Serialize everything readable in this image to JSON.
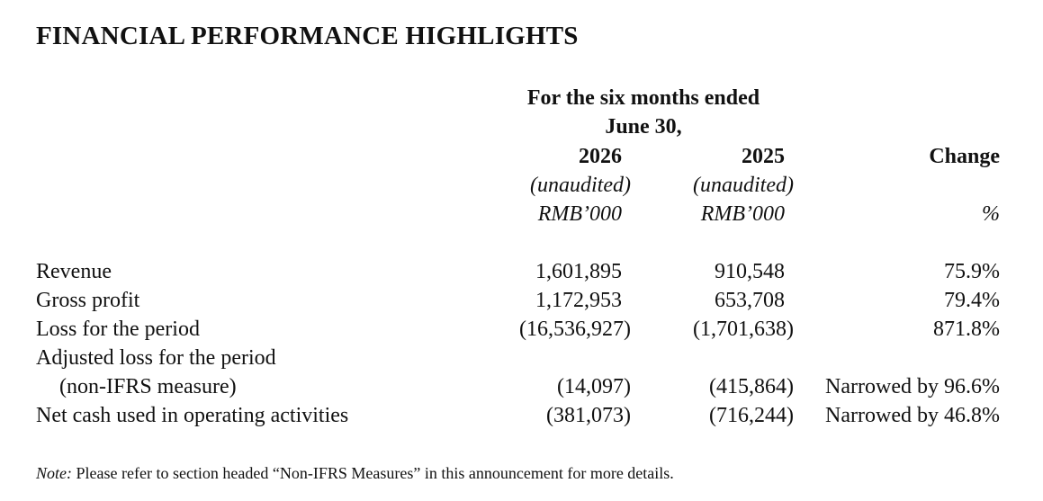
{
  "title": "FINANCIAL PERFORMANCE HIGHLIGHTS",
  "header": {
    "period_line1": "For the six months ended",
    "period_line2": "June 30,",
    "col_2026": "2026",
    "col_2025": "2025",
    "col_change": "Change",
    "unaudited_2026": "(unaudited)",
    "unaudited_2025": "(unaudited)",
    "unit_2026": "RMB’000",
    "unit_2025": "RMB’000",
    "unit_change": "%"
  },
  "rows": [
    {
      "label": "Revenue",
      "v2026": "1,601,895",
      "v2025": "910,548",
      "change": "75.9%"
    },
    {
      "label": "Gross profit",
      "v2026": "1,172,953",
      "v2025": "653,708",
      "change": "79.4%"
    },
    {
      "label": "Loss for the period",
      "v2026": "(16,536,927)",
      "v2025": "(1,701,638)",
      "change": "871.8%"
    },
    {
      "label": "Adjusted loss for the period",
      "label_cont": "(non-IFRS measure)",
      "v2026": "(14,097)",
      "v2025": "(415,864)",
      "change": "Narrowed by 96.6%"
    },
    {
      "label": "Net cash used in operating activities",
      "v2026": "(381,073)",
      "v2025": "(716,244)",
      "change": "Narrowed by 46.8%"
    }
  ],
  "note": {
    "prefix": "Note:",
    "text": " Please refer to section headed “Non-IFRS Measures” in this announcement for more details."
  }
}
